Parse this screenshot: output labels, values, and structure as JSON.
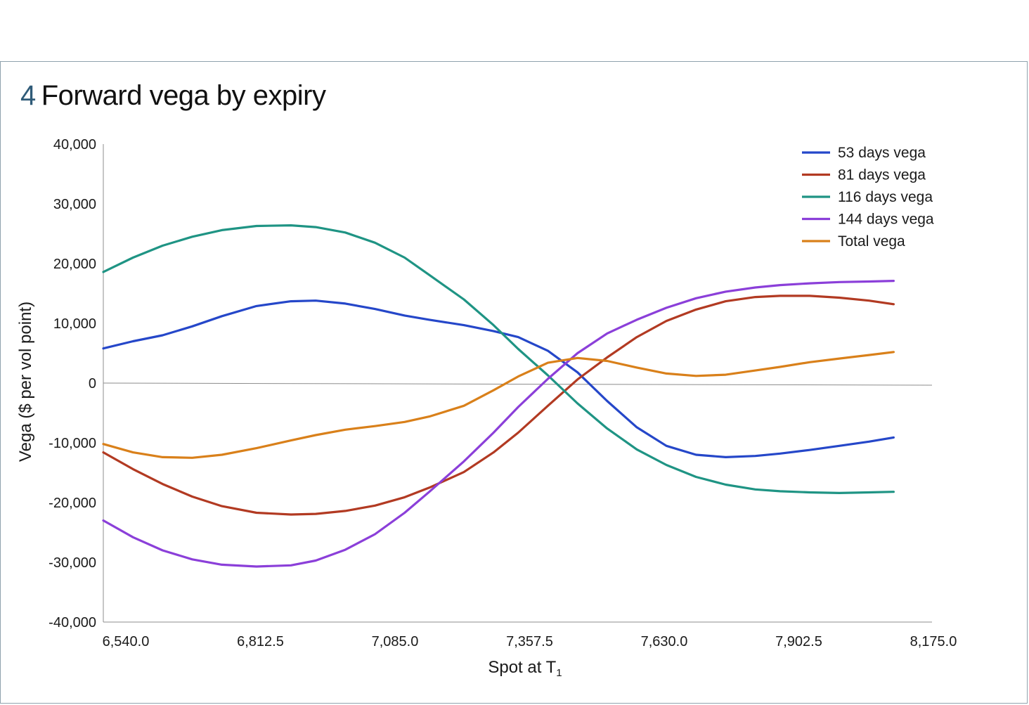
{
  "header": {
    "figure_number": "4",
    "title": "Forward vega by expiry"
  },
  "colors": {
    "frame": "#8fa2ad",
    "figure_number": "#2f5b78",
    "axis": "#8c8c8c"
  },
  "chart_data": {
    "type": "line",
    "title": "Forward vega by expiry",
    "xlabel_main": "Spot at T",
    "xlabel_sub": "1",
    "ylabel": "Vega ($ per vol point)",
    "xlim": [
      6540,
      8175
    ],
    "ylim": [
      -40000,
      40000
    ],
    "x_ticks": [
      6540,
      6812.5,
      7085,
      7357.5,
      7630,
      7902.5,
      8175
    ],
    "x_tick_labels": [
      "6,540.0",
      "6,812.5",
      "7,085.0",
      "7,357.5",
      "7,630.0",
      "7,902.5",
      "8,175.0"
    ],
    "y_ticks": [
      40000,
      30000,
      20000,
      10000,
      0,
      -10000,
      -20000,
      -30000,
      -40000
    ],
    "y_tick_labels": [
      "40,000",
      "30,000",
      "20,000",
      "10,000",
      "0",
      "-10,000",
      "-20,000",
      "-30,000",
      "-40,000"
    ],
    "legend_position": "top-right",
    "x": [
      6540,
      6600,
      6660,
      6720,
      6780,
      6850,
      6920,
      6970,
      7030,
      7090,
      7150,
      7200,
      7270,
      7330,
      7380,
      7440,
      7500,
      7560,
      7620,
      7680,
      7740,
      7800,
      7860,
      7910,
      7970,
      8030,
      8090,
      8140
    ],
    "series": [
      {
        "name": "53 days vega",
        "color": "#2547c9",
        "values": [
          5800,
          7000,
          8000,
          9500,
          11200,
          12900,
          13700,
          13800,
          13300,
          12400,
          11300,
          10600,
          9700,
          8700,
          7700,
          5400,
          1800,
          -3000,
          -7400,
          -10500,
          -12000,
          -12400,
          -12200,
          -11800,
          -11200,
          -10500,
          -9800,
          -9100
        ]
      },
      {
        "name": "81 days vega",
        "color": "#b23a22",
        "values": [
          -11600,
          -14400,
          -16900,
          -19000,
          -20600,
          -21700,
          -22000,
          -21900,
          -21400,
          -20500,
          -19100,
          -17500,
          -14900,
          -11600,
          -8300,
          -3800,
          600,
          4300,
          7700,
          10400,
          12300,
          13700,
          14400,
          14600,
          14600,
          14300,
          13800,
          13200
        ]
      },
      {
        "name": "116 days vega",
        "color": "#1f9484",
        "values": [
          18600,
          21000,
          23000,
          24500,
          25600,
          26300,
          26400,
          26100,
          25200,
          23500,
          21000,
          18100,
          14000,
          9700,
          5700,
          1300,
          -3400,
          -7600,
          -11100,
          -13700,
          -15700,
          -17000,
          -17800,
          -18100,
          -18300,
          -18400,
          -18300,
          -18200
        ]
      },
      {
        "name": "144 days vega",
        "color": "#8b3fd9",
        "values": [
          -23000,
          -25800,
          -28000,
          -29500,
          -30400,
          -30700,
          -30500,
          -29700,
          -27900,
          -25300,
          -21700,
          -18200,
          -13100,
          -8300,
          -4000,
          700,
          5000,
          8300,
          10600,
          12600,
          14200,
          15300,
          16000,
          16400,
          16700,
          16900,
          17000,
          17100
        ]
      },
      {
        "name": "Total vega",
        "color": "#d9801a",
        "values": [
          -10200,
          -11600,
          -12400,
          -12500,
          -12000,
          -10900,
          -9600,
          -8700,
          -7800,
          -7200,
          -6500,
          -5600,
          -3800,
          -1200,
          1100,
          3400,
          4200,
          3700,
          2600,
          1600,
          1200,
          1400,
          2100,
          2700,
          3500,
          4100,
          4700,
          5200
        ]
      }
    ]
  }
}
